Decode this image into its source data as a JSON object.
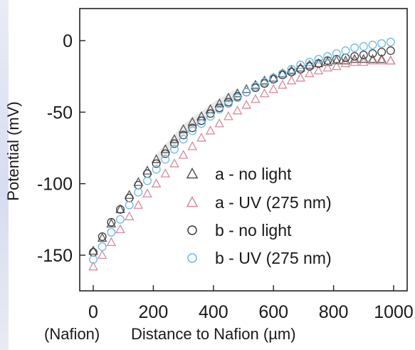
{
  "chart_data": {
    "type": "scatter",
    "title": "",
    "xlabel": "Distance to Nafion (µm)",
    "xlabel_prefix": "(Nafion)",
    "ylabel": "Potential (mV)",
    "xlim": [
      -40,
      1020
    ],
    "ylim": [
      -170,
      10
    ],
    "x_ticks": [
      0,
      200,
      400,
      600,
      800,
      1000
    ],
    "y_ticks": [
      0,
      -50,
      -100,
      -150
    ],
    "x_tick_labels": [
      "0",
      "200",
      "400",
      "600",
      "800",
      "1000"
    ],
    "y_tick_labels": [
      "0",
      "-50",
      "-100",
      "-150"
    ],
    "grid": false,
    "legend_position": "lower-right",
    "series": [
      {
        "name": "a - no light",
        "marker": "triangle",
        "color": "#555555",
        "x": [
          0,
          30,
          60,
          90,
          120,
          150,
          180,
          210,
          240,
          270,
          300,
          330,
          360,
          390,
          420,
          450,
          480,
          510,
          540,
          570,
          600,
          630,
          660,
          690,
          720,
          750,
          780,
          810,
          840,
          870,
          900,
          930,
          960,
          990
        ],
        "y": [
          -147,
          -138,
          -128,
          -118,
          -108,
          -99,
          -91,
          -83,
          -76,
          -69,
          -62,
          -57,
          -53,
          -48,
          -44,
          -40,
          -37,
          -34,
          -31,
          -28,
          -26,
          -23,
          -21,
          -19,
          -17,
          -16,
          -15,
          -14,
          -14,
          -13,
          -13,
          -13,
          -13,
          -14
        ]
      },
      {
        "name": "a - UV (275 nm)",
        "marker": "triangle",
        "color": "#d98a9a",
        "x": [
          0,
          30,
          60,
          90,
          120,
          150,
          180,
          210,
          240,
          270,
          300,
          330,
          360,
          390,
          420,
          450,
          480,
          510,
          540,
          570,
          600,
          630,
          660,
          690,
          720,
          750,
          780,
          810,
          840,
          870,
          900,
          930,
          960,
          990
        ],
        "y": [
          -158,
          -150,
          -141,
          -132,
          -123,
          -115,
          -107,
          -100,
          -93,
          -86,
          -80,
          -74,
          -68,
          -63,
          -58,
          -53,
          -49,
          -45,
          -41,
          -37,
          -34,
          -31,
          -28,
          -26,
          -23,
          -21,
          -19,
          -18,
          -16,
          -15,
          -15,
          -14,
          -14,
          -14
        ]
      },
      {
        "name": "b - no light",
        "marker": "circle",
        "color": "#3a3a3a",
        "x": [
          0,
          30,
          60,
          90,
          120,
          150,
          180,
          210,
          240,
          270,
          300,
          330,
          360,
          390,
          420,
          450,
          480,
          510,
          540,
          570,
          600,
          630,
          660,
          690,
          720,
          750,
          780,
          810,
          840,
          870,
          900,
          930,
          960,
          990
        ],
        "y": [
          -148,
          -137,
          -127,
          -118,
          -110,
          -101,
          -93,
          -86,
          -79,
          -72,
          -66,
          -61,
          -56,
          -51,
          -47,
          -43,
          -39,
          -36,
          -33,
          -30,
          -27,
          -24,
          -22,
          -20,
          -18,
          -16,
          -14,
          -13,
          -12,
          -11,
          -10,
          -9,
          -8,
          -7
        ]
      },
      {
        "name": "b - UV (275 nm)",
        "marker": "circle",
        "color": "#6ab8e0",
        "x": [
          0,
          30,
          60,
          90,
          120,
          150,
          180,
          210,
          240,
          270,
          300,
          330,
          360,
          390,
          420,
          450,
          480,
          510,
          540,
          570,
          600,
          630,
          660,
          690,
          720,
          750,
          780,
          810,
          840,
          870,
          900,
          930,
          960,
          990
        ],
        "y": [
          -153,
          -144,
          -134,
          -125,
          -115,
          -106,
          -98,
          -90,
          -83,
          -76,
          -69,
          -63,
          -58,
          -53,
          -48,
          -44,
          -40,
          -36,
          -32,
          -29,
          -26,
          -23,
          -20,
          -17,
          -15,
          -13,
          -11,
          -9,
          -7,
          -5,
          -4,
          -3,
          -2,
          -1
        ]
      }
    ]
  }
}
